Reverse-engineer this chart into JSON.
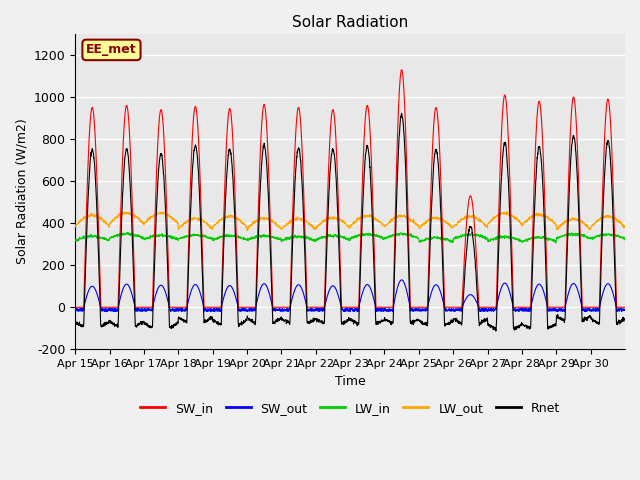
{
  "title": "Solar Radiation",
  "xlabel": "Time",
  "ylabel": "Solar Radiation (W/m2)",
  "ylim": [
    -200,
    1300
  ],
  "yticks": [
    -200,
    0,
    200,
    400,
    600,
    800,
    1000,
    1200
  ],
  "x_labels": [
    "Apr 15",
    "Apr 16",
    "Apr 17",
    "Apr 18",
    "Apr 19",
    "Apr 20",
    "Apr 21",
    "Apr 22",
    "Apr 23",
    "Apr 24",
    "Apr 25",
    "Apr 26",
    "Apr 27",
    "Apr 28",
    "Apr 29",
    "Apr 30"
  ],
  "n_days": 16,
  "annotation_text": "EE_met",
  "annotation_bg": "#FFFF99",
  "annotation_border": "#8B0000",
  "line_colors": {
    "SW_in": "#FF0000",
    "SW_out": "#0000FF",
    "LW_in": "#00CC00",
    "LW_out": "#FFA500",
    "Rnet": "#000000"
  },
  "background_color": "#E8E8E8",
  "grid_color": "#FFFFFF",
  "SW_in_max": [
    950,
    960,
    940,
    955,
    945,
    965,
    950,
    940,
    960,
    1130,
    950,
    530,
    1010,
    980,
    1000,
    990
  ],
  "SW_out_max": [
    100,
    110,
    105,
    108,
    103,
    112,
    107,
    102,
    108,
    130,
    107,
    60,
    115,
    110,
    113,
    112
  ],
  "LW_in_base": 320,
  "LW_in_day_amp": 20,
  "LW_out_base": 380,
  "LW_out_day_amp": 50
}
